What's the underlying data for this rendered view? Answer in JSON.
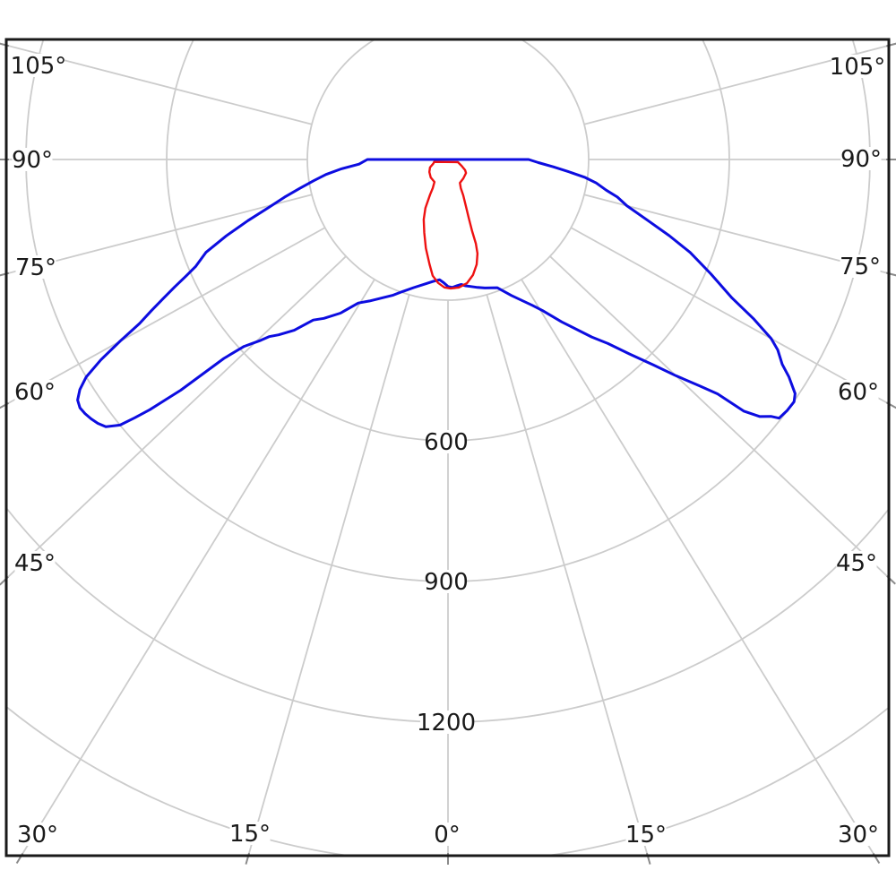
{
  "chart_data": {
    "type": "polar_photometric",
    "title": "",
    "angular_grid": {
      "step_deg": 15,
      "range_deg": [
        -105,
        105
      ],
      "zero_direction": "down",
      "color": "#cccccc"
    },
    "radial_grid": {
      "tick_values": [
        300,
        600,
        900,
        1200,
        1500
      ],
      "labeled_values": [
        "600",
        "900",
        "1200"
      ],
      "color": "#cccccc"
    },
    "angle_labels": {
      "left": [
        "105°",
        "90°",
        "75°",
        "60°",
        "45°"
      ],
      "right": [
        "105°",
        "90°",
        "75°",
        "60°",
        "45°"
      ],
      "bottom": [
        "30°",
        "15°",
        "0°",
        "15°",
        "30°"
      ]
    },
    "frame_color": "#1a1a1a",
    "tick_color": "#8a8a8a",
    "series": [
      {
        "id": "blue-curve",
        "color": "#0d0de0",
        "stroke_width": 3,
        "points": [
          [
            -90,
            172
          ],
          [
            -87,
            190
          ],
          [
            -85,
            228
          ],
          [
            -83,
            262
          ],
          [
            -81,
            290
          ],
          [
            -79,
            322
          ],
          [
            -77,
            358
          ],
          [
            -75,
            396
          ],
          [
            -73,
            446
          ],
          [
            -71,
            500
          ],
          [
            -69,
            553
          ],
          [
            -67,
            585
          ],
          [
            -66,
            612
          ],
          [
            -65,
            643
          ],
          [
            -64,
            675
          ],
          [
            -63,
            710
          ],
          [
            -62,
            745
          ],
          [
            -61,
            800
          ],
          [
            -60,
            855
          ],
          [
            -59,
            900
          ],
          [
            -58,
            926
          ],
          [
            -57,
            942
          ],
          [
            -56,
            947
          ],
          [
            -55,
            945
          ],
          [
            -54,
            941
          ],
          [
            -53,
            935
          ],
          [
            -52,
            926
          ],
          [
            -51,
            900
          ],
          [
            -50.5,
            866
          ],
          [
            -50,
            830
          ],
          [
            -49.6,
            790
          ],
          [
            -49.2,
            753
          ],
          [
            -48.4,
            639
          ],
          [
            -47.5,
            590
          ],
          [
            -46,
            555
          ],
          [
            -45.3,
            537
          ],
          [
            -44,
            520
          ],
          [
            -42,
            490
          ],
          [
            -40,
            447
          ],
          [
            -38,
            430
          ],
          [
            -35,
            400
          ],
          [
            -32,
            361
          ],
          [
            -29,
            345
          ],
          [
            -25,
            325
          ],
          [
            -22,
            312
          ],
          [
            -19,
            298
          ],
          [
            -15,
            283
          ],
          [
            -10,
            269
          ],
          [
            -7,
            262
          ],
          [
            -4,
            257
          ],
          [
            -2,
            263
          ],
          [
            0,
            271
          ],
          [
            2,
            273
          ],
          [
            4,
            270
          ],
          [
            6,
            268
          ],
          [
            8,
            272
          ],
          [
            10,
            275
          ],
          [
            13,
            280
          ],
          [
            16,
            285
          ],
          [
            21,
            293
          ],
          [
            25,
            320
          ],
          [
            30,
            359
          ],
          [
            32,
            380
          ],
          [
            35,
            423
          ],
          [
            39,
            487
          ],
          [
            41,
            520
          ],
          [
            43,
            567
          ],
          [
            45,
            620
          ],
          [
            46.5,
            670
          ],
          [
            48,
            721
          ],
          [
            49,
            762
          ],
          [
            49.6,
            828
          ],
          [
            50.5,
            862
          ],
          [
            51.5,
            880
          ],
          [
            52,
            896
          ],
          [
            53.5,
            900
          ],
          [
            55,
            901
          ],
          [
            56,
            893
          ],
          [
            57.5,
            862
          ],
          [
            58.5,
            836
          ],
          [
            60,
            812
          ],
          [
            61,
            788
          ],
          [
            62.5,
            734
          ],
          [
            64,
            674
          ],
          [
            66.5,
            611
          ],
          [
            69,
            553
          ],
          [
            71,
            499
          ],
          [
            73,
            446
          ],
          [
            75.5,
            394
          ],
          [
            77.5,
            370
          ],
          [
            79,
            344
          ],
          [
            81,
            320
          ],
          [
            82.5,
            295
          ],
          [
            84,
            263
          ],
          [
            86,
            225
          ],
          [
            88,
            193
          ],
          [
            90,
            172
          ]
        ]
      },
      {
        "id": "red-curve",
        "color": "#ee1111",
        "stroke_width": 2.4,
        "points": [
          [
            -80,
            30
          ],
          [
            -75,
            32
          ],
          [
            -66,
            42
          ],
          [
            -56,
            48
          ],
          [
            -44,
            53
          ],
          [
            -31,
            56
          ],
          [
            -28,
            69
          ],
          [
            -27,
            84
          ],
          [
            -25,
            114
          ],
          [
            -22,
            138
          ],
          [
            -18,
            164
          ],
          [
            -14,
            195
          ],
          [
            -10,
            227
          ],
          [
            -7.5,
            250
          ],
          [
            -4.6,
            264
          ],
          [
            -1.6,
            273
          ],
          [
            1.2,
            275
          ],
          [
            4.8,
            274
          ],
          [
            8.7,
            267
          ],
          [
            12.2,
            252
          ],
          [
            15.3,
            232
          ],
          [
            17.4,
            210
          ],
          [
            18.3,
            189
          ],
          [
            18.6,
            161
          ],
          [
            19.5,
            132
          ],
          [
            21,
            106
          ],
          [
            23,
            83
          ],
          [
            24,
            67
          ],
          [
            27,
            56
          ],
          [
            39,
            52
          ],
          [
            53,
            48
          ],
          [
            58,
            43
          ],
          [
            65,
            32
          ],
          [
            75,
            22
          ]
        ]
      }
    ]
  }
}
